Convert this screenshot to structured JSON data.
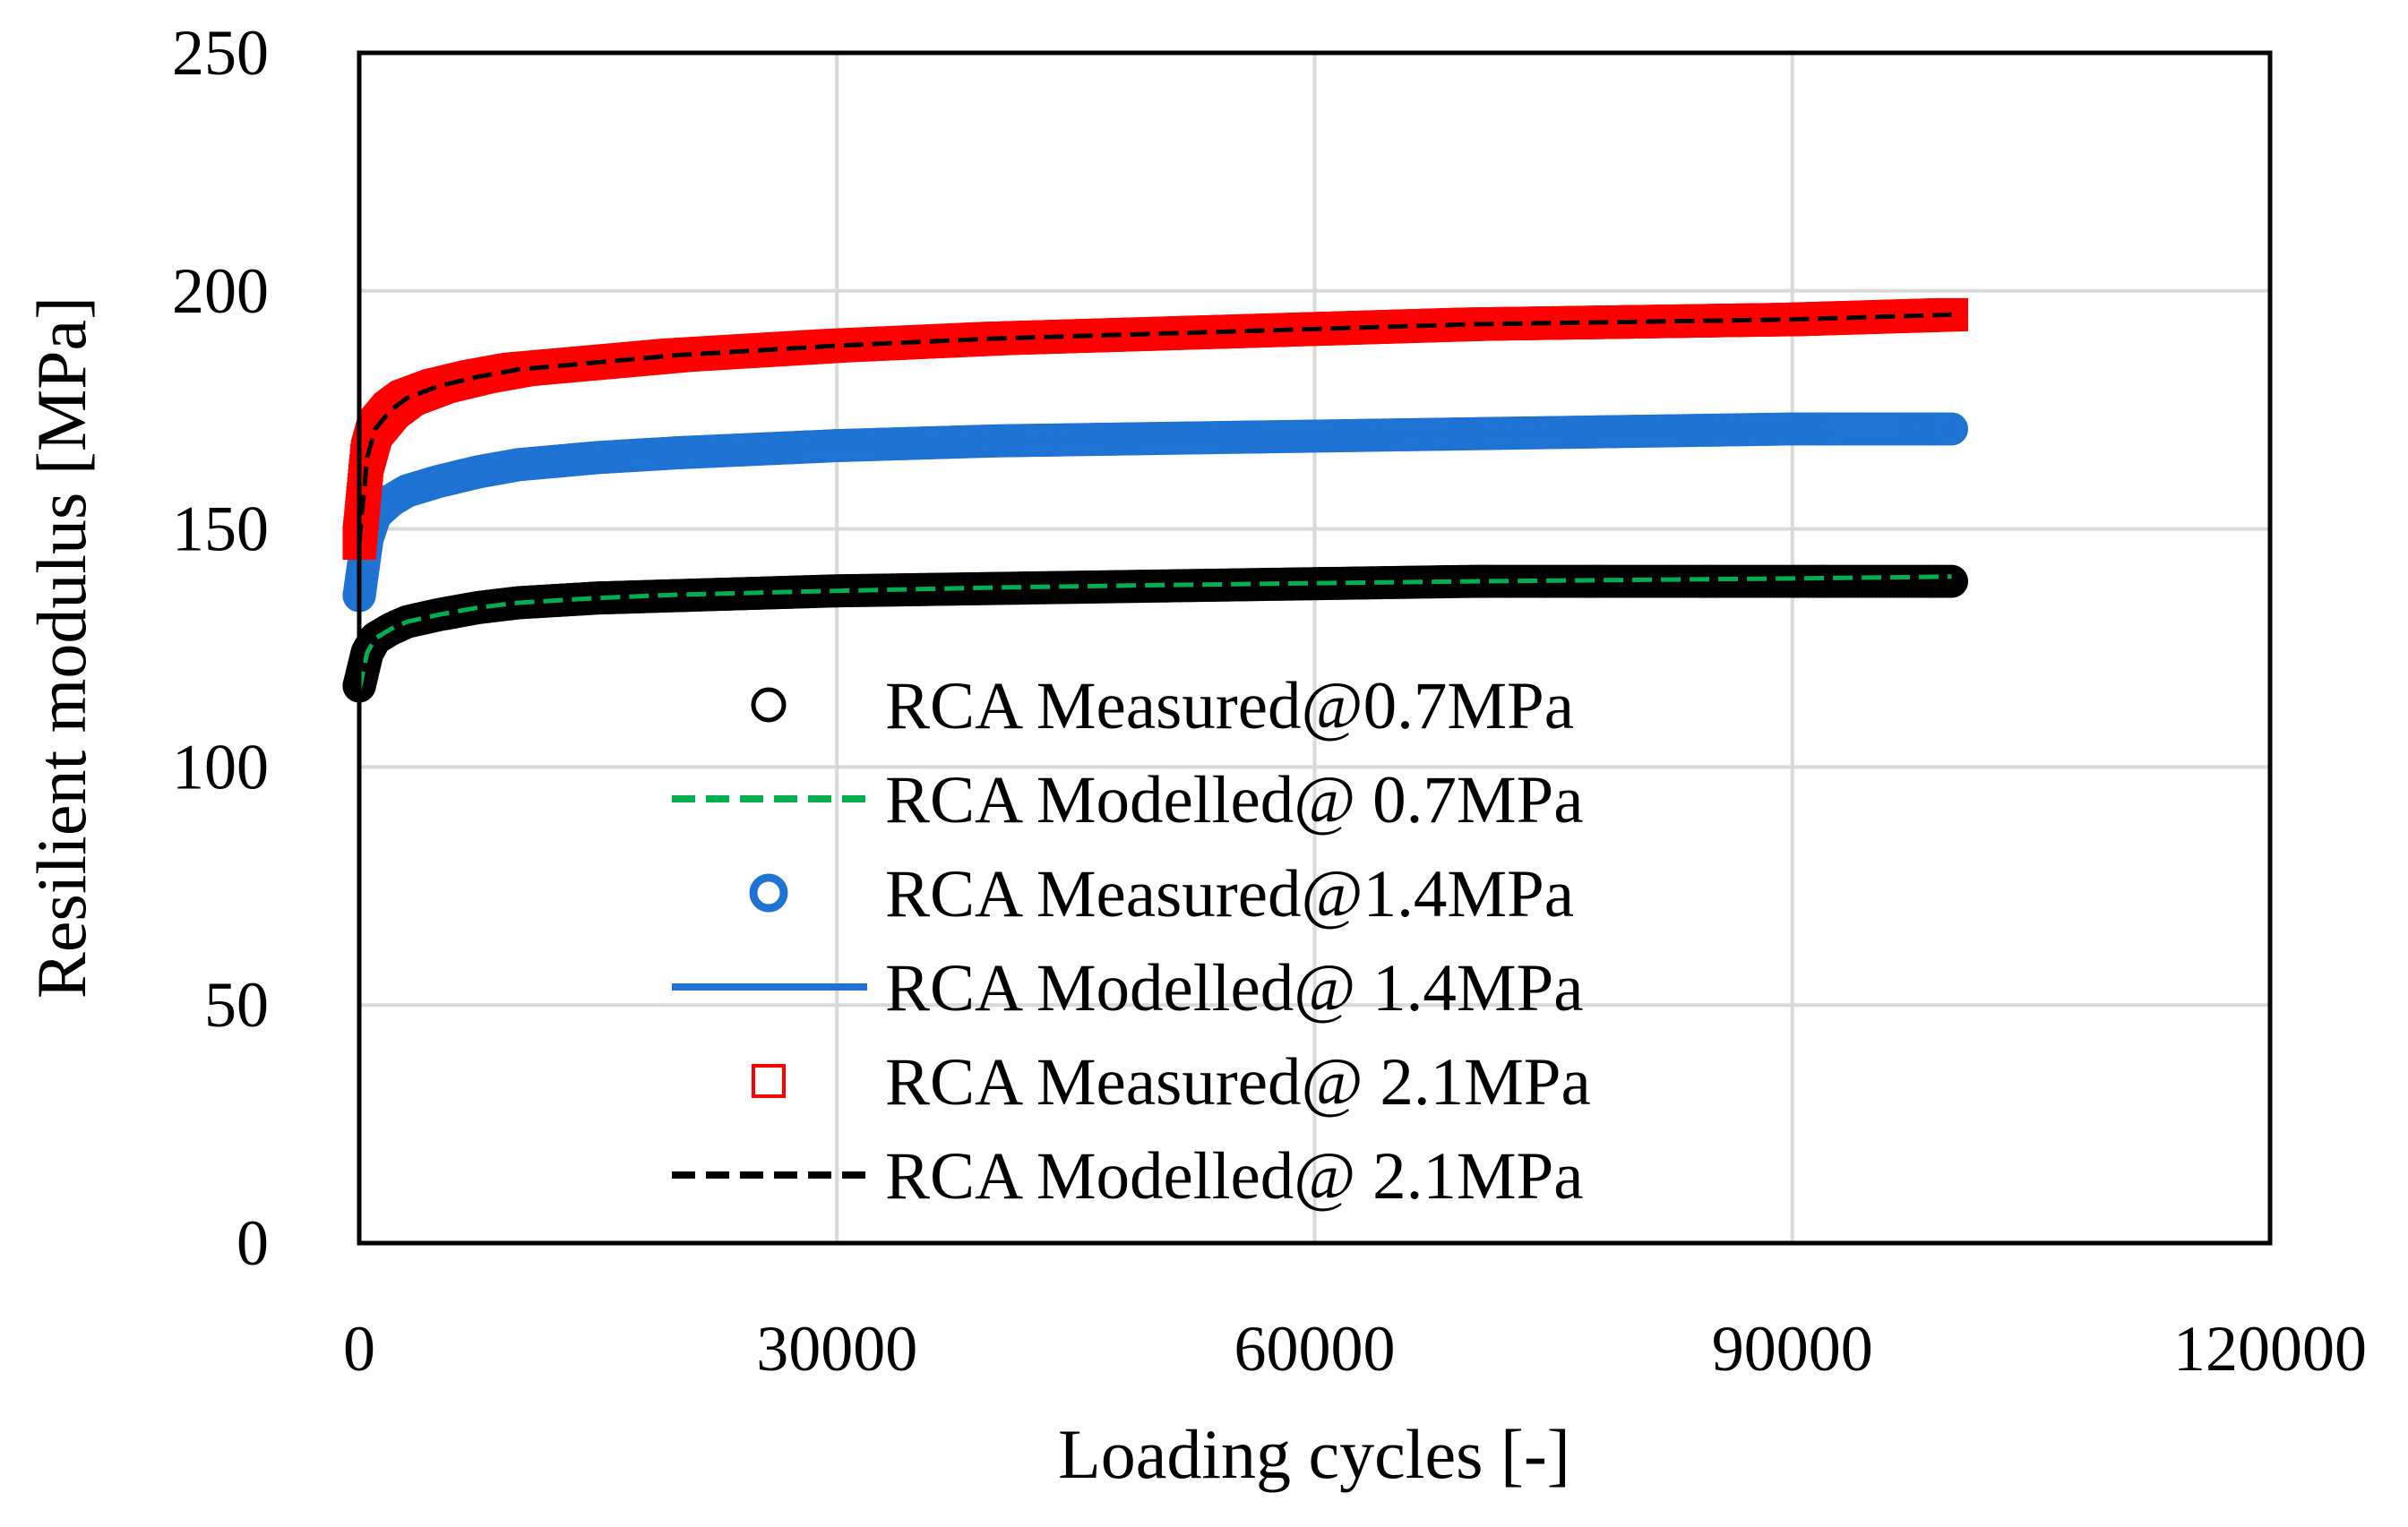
{
  "chart_data": {
    "type": "scatter",
    "title": "",
    "xlabel": "Loading cycles [-]",
    "ylabel": "Resilient modulus [MPa]",
    "xlim": [
      0,
      120000
    ],
    "ylim": [
      0,
      250
    ],
    "xticks": [
      0,
      30000,
      60000,
      90000,
      120000
    ],
    "yticks": [
      0,
      50,
      100,
      150,
      200,
      250
    ],
    "grid": true,
    "legend_placement": "center",
    "series": [
      {
        "name": "RCA Measured@0.7MPa",
        "kind": "marker-circle",
        "color": "#000000",
        "x": [
          0,
          500,
          1000,
          2000,
          3000,
          5000,
          7500,
          10000,
          15000,
          20000,
          30000,
          40000,
          50000,
          60000,
          70000,
          80000,
          90000,
          100000
        ],
        "y": [
          117,
          124,
          127,
          129,
          130.5,
          132,
          133.5,
          134.5,
          135.5,
          136,
          137,
          137.5,
          138,
          138.5,
          139,
          139,
          139,
          139
        ]
      },
      {
        "name": "RCA Modelled@ 0.7MPa",
        "kind": "line-dashed",
        "color": "#00b050",
        "x": [
          0,
          500,
          1000,
          2000,
          3000,
          5000,
          7500,
          10000,
          15000,
          20000,
          30000,
          40000,
          50000,
          60000,
          70000,
          80000,
          90000,
          100000
        ],
        "y": [
          116,
          124,
          127,
          129,
          130.5,
          132,
          133.5,
          134.5,
          135.5,
          136.2,
          137,
          137.7,
          138.2,
          138.6,
          139,
          139.3,
          139.6,
          140
        ]
      },
      {
        "name": "RCA Measured@1.4MPa",
        "kind": "marker-circle",
        "color": "#1f73d2",
        "x": [
          0,
          500,
          1000,
          2000,
          3000,
          5000,
          7500,
          10000,
          15000,
          20000,
          30000,
          40000,
          50000,
          60000,
          70000,
          80000,
          90000,
          100000
        ],
        "y": [
          136,
          148,
          153,
          156,
          158,
          160,
          162,
          163.5,
          165,
          166,
          167.5,
          168.5,
          169,
          169.5,
          170,
          170.5,
          171,
          171
        ]
      },
      {
        "name": "RCA Modelled@ 1.4MPa",
        "kind": "line-solid",
        "color": "#1f73d2",
        "x": [
          0,
          500,
          1000,
          2000,
          3000,
          5000,
          7500,
          10000,
          15000,
          20000,
          30000,
          40000,
          50000,
          60000,
          70000,
          80000,
          90000,
          100000
        ],
        "y": [
          136,
          148,
          153,
          156,
          158,
          160,
          162,
          163.5,
          165,
          166,
          167.5,
          168.5,
          169,
          169.5,
          170,
          170.5,
          171,
          171
        ]
      },
      {
        "name": "RCA Measured@ 2.1MPa",
        "kind": "marker-square",
        "color": "#ff0000",
        "x": [
          0,
          500,
          1000,
          2000,
          3000,
          5000,
          7500,
          10000,
          15000,
          20000,
          30000,
          40000,
          50000,
          60000,
          70000,
          80000,
          90000,
          100000
        ],
        "y": [
          147,
          165,
          171,
          175,
          177.5,
          180,
          182,
          183.5,
          185,
          186.5,
          188.5,
          190,
          191,
          192,
          193,
          193.5,
          194,
          195
        ]
      },
      {
        "name": "RCA Modelled@ 2.1MPa",
        "kind": "line-dashed",
        "color": "#000000",
        "x": [
          0,
          500,
          1000,
          2000,
          3000,
          5000,
          7500,
          10000,
          15000,
          20000,
          30000,
          40000,
          50000,
          60000,
          70000,
          80000,
          90000,
          100000
        ],
        "y": [
          147,
          165,
          171,
          175,
          177.5,
          180,
          182,
          183.5,
          185,
          186.5,
          188.5,
          190,
          191,
          192,
          193,
          193.5,
          194,
          195
        ]
      }
    ]
  }
}
